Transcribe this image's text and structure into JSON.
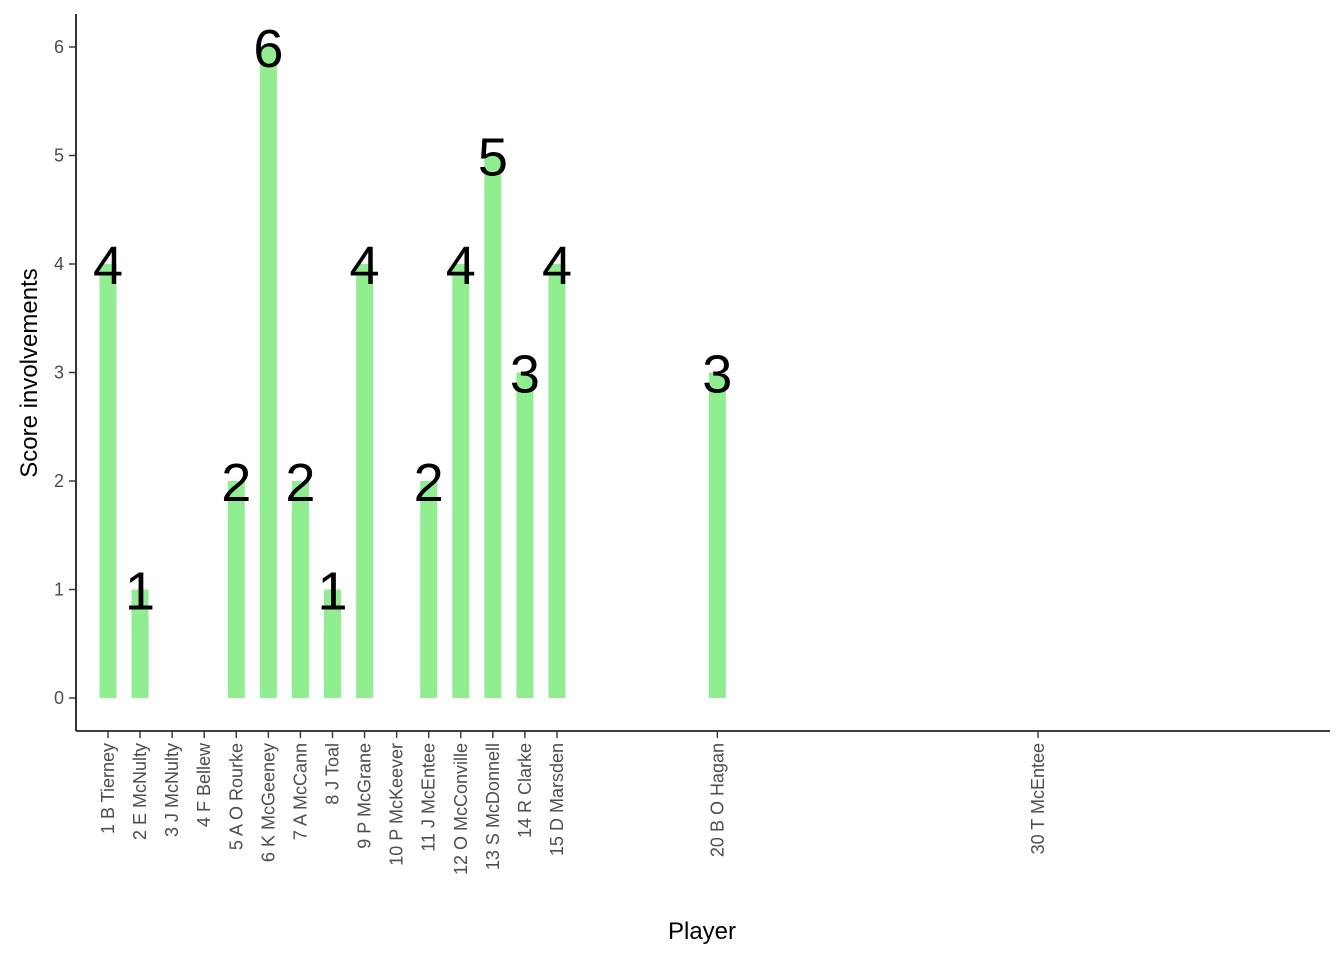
{
  "chart_data": {
    "type": "bar",
    "title": "",
    "xlabel": "Player",
    "ylabel": "Score involvements",
    "ylim": [
      0,
      6
    ],
    "y_ticks": [
      0,
      1,
      2,
      3,
      4,
      5,
      6
    ],
    "grid": false,
    "legend": "none",
    "bar_color": "#90EE90",
    "x_axis": "numeric player number; categories placed at their player number",
    "categories": [
      {
        "x": 1,
        "label": "1 B Tierney",
        "value": 4
      },
      {
        "x": 2,
        "label": "2 E McNulty",
        "value": 1
      },
      {
        "x": 3,
        "label": "3 J McNulty",
        "value": 0
      },
      {
        "x": 4,
        "label": "4 F Bellew",
        "value": 0
      },
      {
        "x": 5,
        "label": "5 A O Rourke",
        "value": 2
      },
      {
        "x": 6,
        "label": "6 K McGeeney",
        "value": 6
      },
      {
        "x": 7,
        "label": "7 A McCann",
        "value": 2
      },
      {
        "x": 8,
        "label": "8 J Toal",
        "value": 1
      },
      {
        "x": 9,
        "label": "9 P McGrane",
        "value": 4
      },
      {
        "x": 10,
        "label": "10 P McKeever",
        "value": 0
      },
      {
        "x": 11,
        "label": "11 J McEntee",
        "value": 2
      },
      {
        "x": 12,
        "label": "12 O McConville",
        "value": 4
      },
      {
        "x": 13,
        "label": "13 S McDonnell",
        "value": 5
      },
      {
        "x": 14,
        "label": "14 R Clarke",
        "value": 3
      },
      {
        "x": 15,
        "label": "15 D Marsden",
        "value": 4
      },
      {
        "x": 20,
        "label": "20 B O Hagan",
        "value": 3
      },
      {
        "x": 30,
        "label": "30 T McEntee",
        "value": 0
      }
    ]
  }
}
